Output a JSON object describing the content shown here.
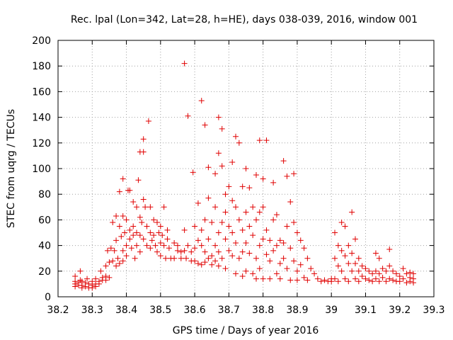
{
  "chart_data": {
    "type": "scatter",
    "title": "Rec. lpal (Lon=342, Lat=28, h=HE), days 038-039, 2016, window 001",
    "xlabel": "GPS time / Days of year 2016",
    "ylabel": "STEC from uqrg / TECUs",
    "xlim": [
      38.2,
      39.3
    ],
    "ylim": [
      0,
      200
    ],
    "xticks": [
      38.2,
      38.3,
      38.4,
      38.5,
      38.6,
      38.7,
      38.8,
      38.9,
      39.0,
      39.1,
      39.2,
      39.3
    ],
    "xtick_labels": [
      "38.2",
      "38.3",
      "38.4",
      "38.5",
      "38.6",
      "38.7",
      "38.8",
      "38.9",
      "39",
      "39.1",
      "39.2",
      "39.3"
    ],
    "yticks": [
      0,
      20,
      40,
      60,
      80,
      100,
      120,
      140,
      160,
      180,
      200
    ],
    "ytick_labels": [
      "0",
      "20",
      "40",
      "60",
      "80",
      "100",
      "120",
      "140",
      "160",
      "180",
      "200"
    ],
    "grid": true,
    "marker": "+",
    "color": "#e00000",
    "series": [
      {
        "name": "STEC",
        "points": [
          [
            38.25,
            16
          ],
          [
            38.25,
            12
          ],
          [
            38.25,
            10
          ],
          [
            38.25,
            8
          ],
          [
            38.26,
            11
          ],
          [
            38.26,
            9
          ],
          [
            38.265,
            20
          ],
          [
            38.265,
            13
          ],
          [
            38.27,
            12
          ],
          [
            38.27,
            9
          ],
          [
            38.27,
            7
          ],
          [
            38.28,
            11
          ],
          [
            38.28,
            8
          ],
          [
            38.285,
            14
          ],
          [
            38.29,
            10
          ],
          [
            38.29,
            7
          ],
          [
            38.3,
            12
          ],
          [
            38.3,
            9
          ],
          [
            38.3,
            7
          ],
          [
            38.31,
            14
          ],
          [
            38.31,
            10
          ],
          [
            38.31,
            8
          ],
          [
            38.32,
            12
          ],
          [
            38.32,
            10
          ],
          [
            38.325,
            20
          ],
          [
            38.33,
            15
          ],
          [
            38.33,
            13
          ],
          [
            38.34,
            16
          ],
          [
            38.34,
            13
          ],
          [
            38.34,
            24
          ],
          [
            38.345,
            36
          ],
          [
            38.35,
            27
          ],
          [
            38.35,
            15
          ],
          [
            38.355,
            38
          ],
          [
            38.36,
            58
          ],
          [
            38.36,
            28
          ],
          [
            38.365,
            36
          ],
          [
            38.37,
            63
          ],
          [
            38.37,
            44
          ],
          [
            38.37,
            24
          ],
          [
            38.375,
            30
          ],
          [
            38.38,
            82
          ],
          [
            38.38,
            55
          ],
          [
            38.38,
            26
          ],
          [
            38.385,
            47
          ],
          [
            38.39,
            92
          ],
          [
            38.39,
            63
          ],
          [
            38.39,
            36
          ],
          [
            38.39,
            28
          ],
          [
            38.395,
            50
          ],
          [
            38.4,
            60
          ],
          [
            38.4,
            40
          ],
          [
            38.4,
            32
          ],
          [
            38.405,
            83
          ],
          [
            38.41,
            83
          ],
          [
            38.41,
            52
          ],
          [
            38.41,
            45
          ],
          [
            38.415,
            38
          ],
          [
            38.42,
            74
          ],
          [
            38.42,
            55
          ],
          [
            38.42,
            48
          ],
          [
            38.425,
            30
          ],
          [
            38.43,
            70
          ],
          [
            38.43,
            50
          ],
          [
            38.43,
            40
          ],
          [
            38.435,
            91
          ],
          [
            38.44,
            113
          ],
          [
            38.44,
            62
          ],
          [
            38.44,
            48
          ],
          [
            38.44,
            35
          ],
          [
            38.445,
            58
          ],
          [
            38.45,
            123
          ],
          [
            38.45,
            113
          ],
          [
            38.45,
            76
          ],
          [
            38.45,
            45
          ],
          [
            38.455,
            70
          ],
          [
            38.46,
            55
          ],
          [
            38.46,
            40
          ],
          [
            38.465,
            137
          ],
          [
            38.47,
            70
          ],
          [
            38.47,
            50
          ],
          [
            38.47,
            38
          ],
          [
            38.475,
            44
          ],
          [
            38.48,
            60
          ],
          [
            38.48,
            48
          ],
          [
            38.485,
            40
          ],
          [
            38.49,
            58
          ],
          [
            38.49,
            35
          ],
          [
            38.495,
            50
          ],
          [
            38.5,
            55
          ],
          [
            38.5,
            42
          ],
          [
            38.5,
            32
          ],
          [
            38.505,
            48
          ],
          [
            38.51,
            70
          ],
          [
            38.51,
            40
          ],
          [
            38.515,
            30
          ],
          [
            38.52,
            52
          ],
          [
            38.52,
            45
          ],
          [
            38.525,
            38
          ],
          [
            38.53,
            30
          ],
          [
            38.54,
            42
          ],
          [
            38.54,
            30
          ],
          [
            38.55,
            40
          ],
          [
            38.55,
            36
          ],
          [
            38.56,
            35
          ],
          [
            38.56,
            30
          ],
          [
            38.57,
            182
          ],
          [
            38.57,
            52
          ],
          [
            38.57,
            36
          ],
          [
            38.575,
            30
          ],
          [
            38.58,
            141
          ],
          [
            38.58,
            40
          ],
          [
            38.59,
            35
          ],
          [
            38.59,
            28
          ],
          [
            38.595,
            97
          ],
          [
            38.6,
            55
          ],
          [
            38.6,
            38
          ],
          [
            38.6,
            28
          ],
          [
            38.61,
            73
          ],
          [
            38.61,
            44
          ],
          [
            38.61,
            26
          ],
          [
            38.62,
            153
          ],
          [
            38.62,
            52
          ],
          [
            38.62,
            40
          ],
          [
            38.62,
            25
          ],
          [
            38.63,
            134
          ],
          [
            38.63,
            60
          ],
          [
            38.63,
            35
          ],
          [
            38.63,
            27
          ],
          [
            38.64,
            101
          ],
          [
            38.64,
            77
          ],
          [
            38.64,
            45
          ],
          [
            38.64,
            30
          ],
          [
            38.65,
            58
          ],
          [
            38.65,
            32
          ],
          [
            38.65,
            25
          ],
          [
            38.66,
            96
          ],
          [
            38.66,
            70
          ],
          [
            38.66,
            40
          ],
          [
            38.66,
            28
          ],
          [
            38.67,
            140
          ],
          [
            38.67,
            112
          ],
          [
            38.67,
            50
          ],
          [
            38.67,
            35
          ],
          [
            38.67,
            24
          ],
          [
            38.68,
            131
          ],
          [
            38.68,
            102
          ],
          [
            38.68,
            58
          ],
          [
            38.68,
            30
          ],
          [
            38.69,
            80
          ],
          [
            38.69,
            66
          ],
          [
            38.69,
            45
          ],
          [
            38.69,
            22
          ],
          [
            38.7,
            86
          ],
          [
            38.7,
            55
          ],
          [
            38.7,
            36
          ],
          [
            38.71,
            105
          ],
          [
            38.71,
            75
          ],
          [
            38.71,
            50
          ],
          [
            38.71,
            32
          ],
          [
            38.72,
            125
          ],
          [
            38.72,
            70
          ],
          [
            38.72,
            42
          ],
          [
            38.72,
            18
          ],
          [
            38.73,
            120
          ],
          [
            38.73,
            60
          ],
          [
            38.73,
            30
          ],
          [
            38.74,
            86
          ],
          [
            38.74,
            52
          ],
          [
            38.74,
            35
          ],
          [
            38.74,
            16
          ],
          [
            38.75,
            100
          ],
          [
            38.75,
            66
          ],
          [
            38.75,
            42
          ],
          [
            38.75,
            20
          ],
          [
            38.76,
            85
          ],
          [
            38.76,
            55
          ],
          [
            38.76,
            34
          ],
          [
            38.77,
            70
          ],
          [
            38.77,
            48
          ],
          [
            38.77,
            18
          ],
          [
            38.78,
            95
          ],
          [
            38.78,
            60
          ],
          [
            38.78,
            30
          ],
          [
            38.78,
            14
          ],
          [
            38.79,
            122
          ],
          [
            38.79,
            66
          ],
          [
            38.79,
            40
          ],
          [
            38.79,
            22
          ],
          [
            38.8,
            92
          ],
          [
            38.8,
            70
          ],
          [
            38.8,
            45
          ],
          [
            38.8,
            14
          ],
          [
            38.81,
            122
          ],
          [
            38.81,
            52
          ],
          [
            38.81,
            33
          ],
          [
            38.82,
            44
          ],
          [
            38.82,
            28
          ],
          [
            38.82,
            14
          ],
          [
            38.83,
            89
          ],
          [
            38.83,
            60
          ],
          [
            38.83,
            36
          ],
          [
            38.84,
            64
          ],
          [
            38.84,
            40
          ],
          [
            38.84,
            18
          ],
          [
            38.85,
            44
          ],
          [
            38.85,
            26
          ],
          [
            38.85,
            14
          ],
          [
            38.86,
            106
          ],
          [
            38.86,
            42
          ],
          [
            38.86,
            30
          ],
          [
            38.87,
            94
          ],
          [
            38.87,
            55
          ],
          [
            38.87,
            22
          ],
          [
            38.88,
            74
          ],
          [
            38.88,
            38
          ],
          [
            38.88,
            13
          ],
          [
            38.89,
            96
          ],
          [
            38.89,
            58
          ],
          [
            38.89,
            28
          ],
          [
            38.9,
            50
          ],
          [
            38.9,
            20
          ],
          [
            38.9,
            13
          ],
          [
            38.91,
            44
          ],
          [
            38.91,
            25
          ],
          [
            38.92,
            38
          ],
          [
            38.92,
            15
          ],
          [
            38.93,
            30
          ],
          [
            38.93,
            13
          ],
          [
            38.94,
            22
          ],
          [
            38.95,
            18
          ],
          [
            38.96,
            14
          ],
          [
            38.97,
            12
          ],
          [
            38.98,
            13
          ],
          [
            38.99,
            12
          ],
          [
            39.0,
            14
          ],
          [
            39.0,
            12
          ],
          [
            39.01,
            50
          ],
          [
            39.01,
            30
          ],
          [
            39.01,
            14
          ],
          [
            39.02,
            40
          ],
          [
            39.02,
            24
          ],
          [
            39.02,
            12
          ],
          [
            39.03,
            58
          ],
          [
            39.03,
            36
          ],
          [
            39.03,
            20
          ],
          [
            39.04,
            55
          ],
          [
            39.04,
            32
          ],
          [
            39.04,
            14
          ],
          [
            39.05,
            40
          ],
          [
            39.05,
            26
          ],
          [
            39.05,
            12
          ],
          [
            39.06,
            66
          ],
          [
            39.06,
            34
          ],
          [
            39.06,
            20
          ],
          [
            39.07,
            45
          ],
          [
            39.07,
            26
          ],
          [
            39.07,
            14
          ],
          [
            39.08,
            30
          ],
          [
            39.08,
            20
          ],
          [
            39.08,
            12
          ],
          [
            39.09,
            24
          ],
          [
            39.09,
            16
          ],
          [
            39.1,
            22
          ],
          [
            39.1,
            14
          ],
          [
            39.11,
            20
          ],
          [
            39.11,
            13
          ],
          [
            39.12,
            18
          ],
          [
            39.12,
            12
          ],
          [
            39.13,
            34
          ],
          [
            39.13,
            20
          ],
          [
            39.13,
            14
          ],
          [
            39.14,
            30
          ],
          [
            39.14,
            18
          ],
          [
            39.14,
            12
          ],
          [
            39.15,
            22
          ],
          [
            39.15,
            15
          ],
          [
            39.16,
            20
          ],
          [
            39.16,
            12
          ],
          [
            39.17,
            37
          ],
          [
            39.17,
            24
          ],
          [
            39.17,
            14
          ],
          [
            39.18,
            20
          ],
          [
            39.18,
            13
          ],
          [
            39.19,
            18
          ],
          [
            39.19,
            12
          ],
          [
            39.2,
            16
          ],
          [
            39.2,
            12
          ],
          [
            39.21,
            22
          ],
          [
            39.21,
            14
          ],
          [
            39.22,
            18
          ],
          [
            39.22,
            11
          ],
          [
            39.23,
            19
          ],
          [
            39.23,
            15
          ],
          [
            39.23,
            12
          ],
          [
            39.24,
            18
          ],
          [
            39.24,
            14
          ],
          [
            39.24,
            11
          ]
        ]
      }
    ]
  }
}
